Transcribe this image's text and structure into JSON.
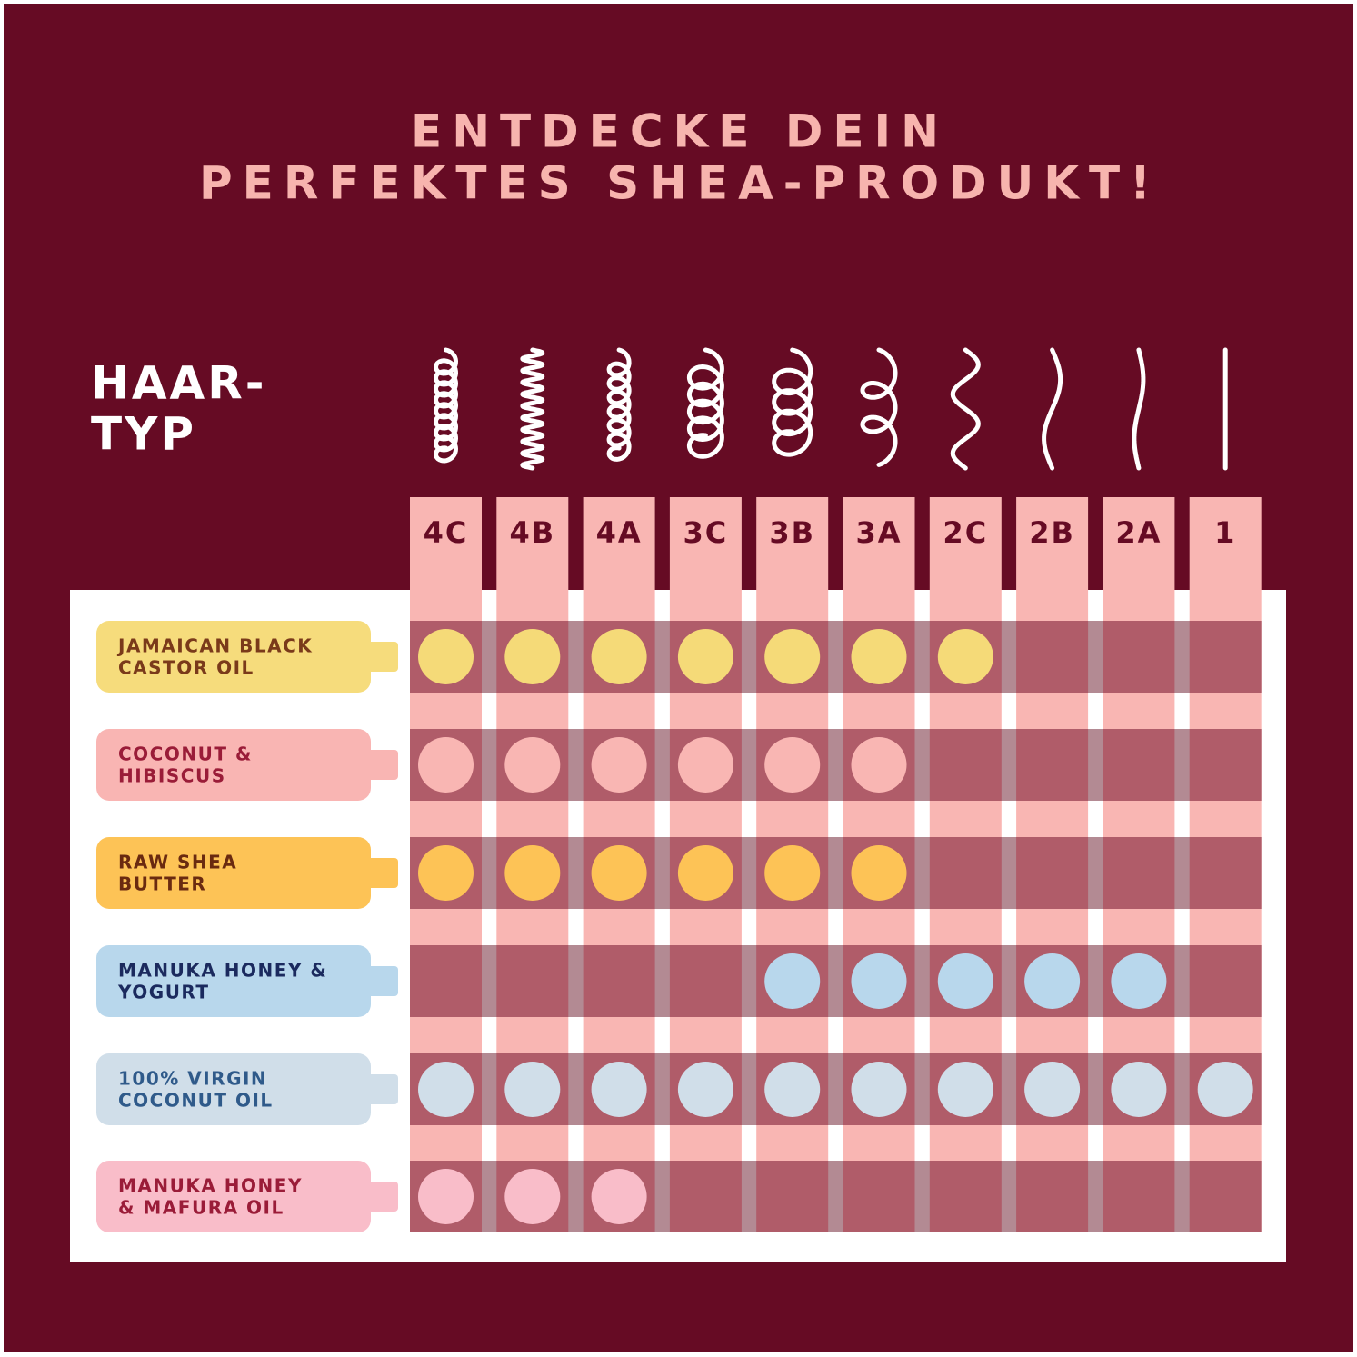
{
  "title": [
    "ENTDECKE DEIN",
    "PERFEKTES SHEA-PRODUKT!"
  ],
  "hair_type_label": [
    "HAAR-",
    "TYP"
  ],
  "columns": [
    "4C",
    "4B",
    "4A",
    "3C",
    "3B",
    "3A",
    "2C",
    "2B",
    "2A",
    "1"
  ],
  "rows": [
    {
      "name": [
        "JAMAICAN BLACK",
        "CASTOR OIL"
      ],
      "color": "#f6dc7c",
      "text_color": "#7a3a1a",
      "dot_color": "#f5da78",
      "matches": [
        true,
        true,
        true,
        true,
        true,
        true,
        true,
        false,
        false,
        false
      ]
    },
    {
      "name": [
        "COCONUT &",
        "HIBISCUS"
      ],
      "color": "#f9b5b3",
      "text_color": "#9a1c38",
      "dot_color": "#f9b6b3",
      "matches": [
        true,
        true,
        true,
        true,
        true,
        true,
        false,
        false,
        false,
        false
      ]
    },
    {
      "name": [
        "RAW SHEA",
        "BUTTER"
      ],
      "color": "#fdc356",
      "text_color": "#6a2a10",
      "dot_color": "#fdc356",
      "matches": [
        true,
        true,
        true,
        true,
        true,
        true,
        false,
        false,
        false,
        false
      ]
    },
    {
      "name": [
        "MANUKA HONEY &",
        "YOGURT"
      ],
      "color": "#b8d7ec",
      "text_color": "#1b2a5e",
      "dot_color": "#b8d7ec",
      "matches": [
        false,
        false,
        false,
        false,
        true,
        true,
        true,
        true,
        true,
        false
      ]
    },
    {
      "name": [
        "100% VIRGIN",
        "COCONUT OIL"
      ],
      "color": "#d0dee9",
      "text_color": "#2f5a8a",
      "dot_color": "#d0dee9",
      "matches": [
        true,
        true,
        true,
        true,
        true,
        true,
        true,
        true,
        true,
        true
      ]
    },
    {
      "name": [
        "MANUKA HONEY",
        "& MAFURA OIL"
      ],
      "color": "#f9bdc9",
      "text_color": "#9a1c38",
      "dot_color": "#f9bdc9",
      "matches": [
        true,
        true,
        true,
        false,
        false,
        false,
        false,
        false,
        false,
        false
      ]
    }
  ]
}
